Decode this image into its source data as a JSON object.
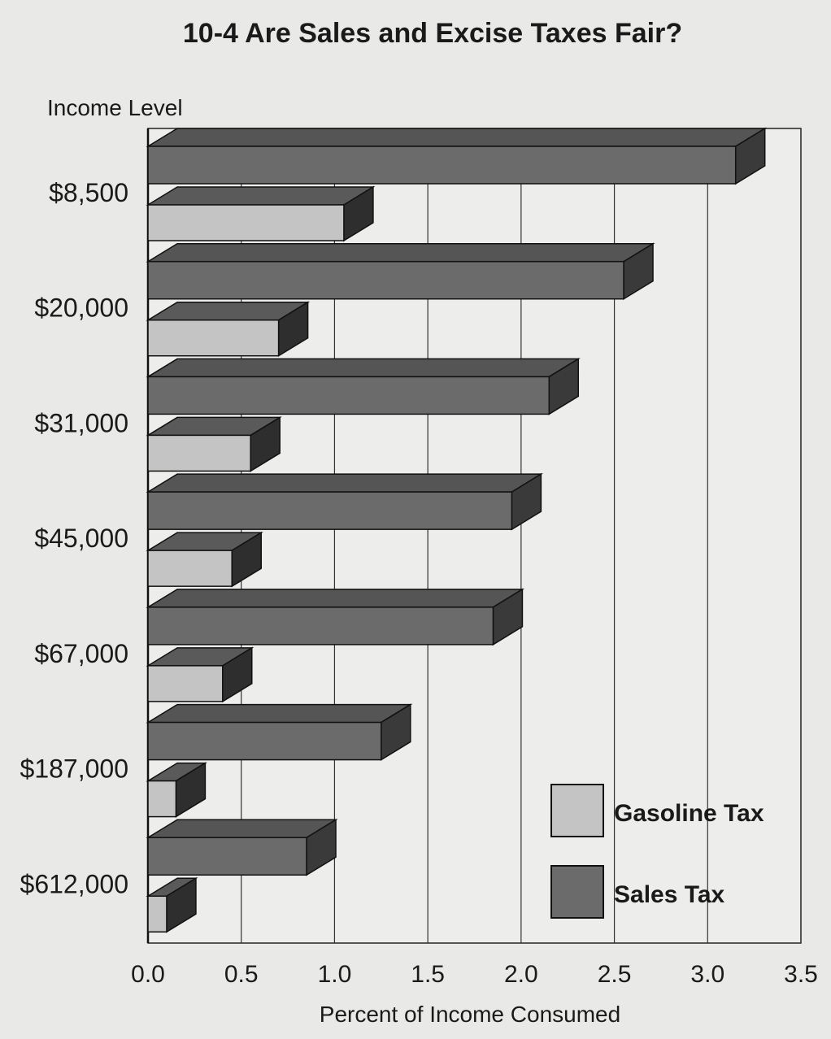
{
  "chart_data": {
    "type": "bar",
    "orientation": "horizontal",
    "title": "10-4  Are Sales and Excise Taxes Fair?",
    "ylabel": "Income Level",
    "xlabel": "Percent of Income Consumed",
    "categories": [
      "$8,500",
      "$20,000",
      "$31,000",
      "$45,000",
      "$67,000",
      "$187,000",
      "$612,000"
    ],
    "series": [
      {
        "name": "Sales Tax",
        "values": [
          3.15,
          2.55,
          2.15,
          1.95,
          1.85,
          1.25,
          0.85
        ],
        "color": "#6b6b6b"
      },
      {
        "name": "Gasoline Tax",
        "values": [
          1.05,
          0.7,
          0.55,
          0.45,
          0.4,
          0.15,
          0.1
        ],
        "color": "#c4c4c4"
      }
    ],
    "xlim": [
      0,
      3.5
    ],
    "xticks": [
      "0.0",
      "0.5",
      "1.0",
      "1.5",
      "2.0",
      "2.5",
      "3.0",
      "3.5"
    ],
    "grid": true,
    "legend_position": "bottom-right",
    "legend": [
      {
        "label": "Gasoline Tax",
        "color": "#c4c4c4"
      },
      {
        "label": "Sales Tax",
        "color": "#6b6b6b"
      }
    ]
  }
}
